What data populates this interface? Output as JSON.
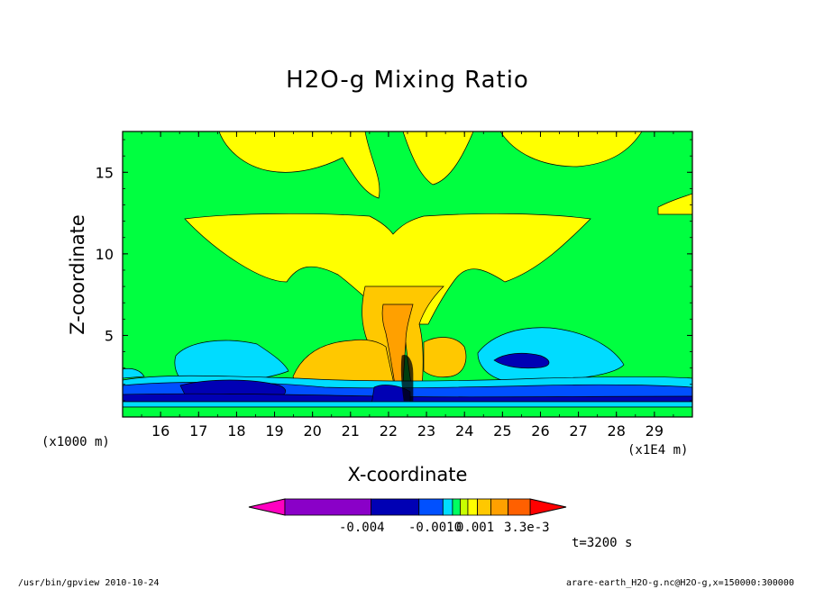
{
  "chart_data": {
    "type": "heatmap",
    "title": "H2O-g Mixing Ratio",
    "xlabel": "X-coordinate",
    "ylabel": "Z-coordinate",
    "x_scale_note": "(x1E4 m)",
    "y_scale_note": "(x1000 m)",
    "x_ticks": [
      "16",
      "17",
      "18",
      "19",
      "20",
      "21",
      "22",
      "23",
      "24",
      "25",
      "26",
      "27",
      "28",
      "29"
    ],
    "y_ticks": [
      "5",
      "10",
      "15"
    ],
    "xlim": [
      15.0,
      30.0
    ],
    "ylim": [
      0.0,
      17.5
    ],
    "colorbar": {
      "labels": [
        "-0.004",
        "-0.0010",
        "0.001",
        "3.3e-3"
      ],
      "colors": [
        "#ff00c0",
        "#8a00c8",
        "#0000b4",
        "#0050ff",
        "#00dcff",
        "#00ff60",
        "#c8ff00",
        "#ffff00",
        "#ffc800",
        "#ffa000",
        "#ff6000",
        "#ff0000"
      ]
    },
    "time_label": "t=3200 s"
  },
  "footer": {
    "left": "/usr/bin/gpview  2010-10-24",
    "right": "arare-earth_H2O-g.nc@H2O-g,x=150000:300000"
  },
  "colors": {
    "green": "#00ff40",
    "yellow": "#ffff00",
    "lime": "#c8ff00",
    "orange": "#ffc800",
    "dark_orange": "#ffa000",
    "cyan": "#00dcff",
    "blue": "#0050ff",
    "navy": "#0000b4"
  }
}
